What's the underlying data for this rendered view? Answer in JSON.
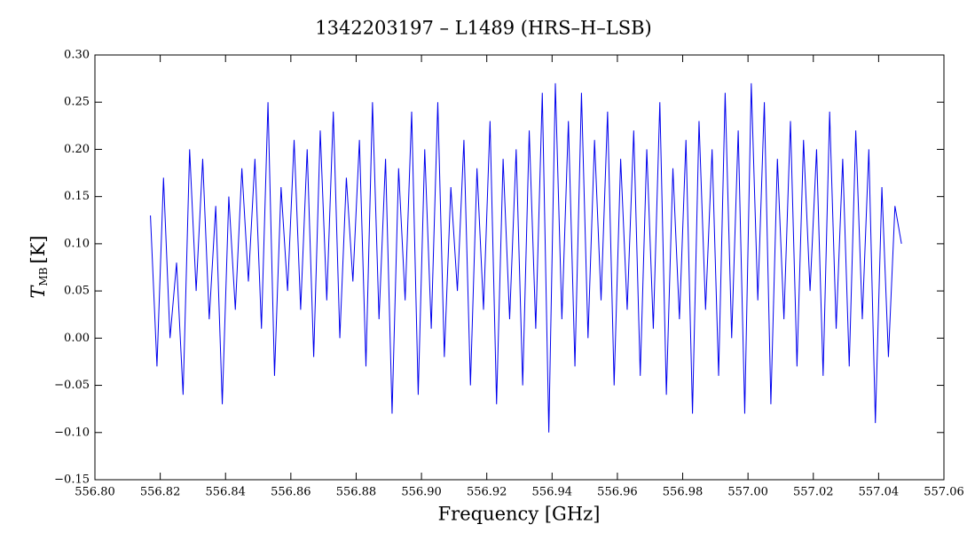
{
  "chart_data": {
    "type": "line",
    "title": "1342203197 – L1489 (HRS–H–LSB)",
    "xlabel": "Frequency [GHz]",
    "ylabel": {
      "symbol": "T",
      "subscript": "MB",
      "unit": "[K]"
    },
    "xlim": [
      556.8,
      557.06
    ],
    "xticks": [
      {
        "value": 556.8,
        "label": "556.80"
      },
      {
        "value": 556.82,
        "label": "556.82"
      },
      {
        "value": 556.84,
        "label": "556.84"
      },
      {
        "value": 556.86,
        "label": "556.86"
      },
      {
        "value": 556.88,
        "label": "556.88"
      },
      {
        "value": 556.9,
        "label": "556.90"
      },
      {
        "value": 556.92,
        "label": "556.92"
      },
      {
        "value": 556.94,
        "label": "556.94"
      },
      {
        "value": 556.96,
        "label": "556.96"
      },
      {
        "value": 556.98,
        "label": "556.98"
      },
      {
        "value": 557.0,
        "label": "557.00"
      },
      {
        "value": 557.02,
        "label": "557.02"
      },
      {
        "value": 557.04,
        "label": "557.04"
      },
      {
        "value": 557.06,
        "label": "557.06"
      }
    ],
    "ylim": [
      -0.15,
      0.3
    ],
    "yticks": [
      {
        "value": -0.15,
        "label": "−0.15"
      },
      {
        "value": -0.1,
        "label": "−0.10"
      },
      {
        "value": -0.05,
        "label": "−0.05"
      },
      {
        "value": 0.0,
        "label": "0.00"
      },
      0.05,
      {
        "value": 0.1,
        "label": "0.10"
      },
      0.15,
      {
        "value": 0.2,
        "label": "0.20"
      },
      0.25,
      {
        "value": 0.3,
        "label": "0.30"
      }
    ],
    "series": [
      {
        "color": "#0000ee",
        "x": [
          556.817,
          556.819,
          556.821,
          556.823,
          556.825,
          556.827,
          556.829,
          556.831,
          556.833,
          556.835,
          556.837,
          556.839,
          556.841,
          556.843,
          556.845,
          556.847,
          556.849,
          556.851,
          556.853,
          556.855,
          556.857,
          556.859,
          556.861,
          556.863,
          556.865,
          556.867,
          556.869,
          556.871,
          556.873,
          556.875,
          556.877,
          556.879,
          556.881,
          556.883,
          556.885,
          556.887,
          556.889,
          556.891,
          556.893,
          556.895,
          556.897,
          556.899,
          556.901,
          556.903,
          556.905,
          556.907,
          556.909,
          556.911,
          556.913,
          556.915,
          556.917,
          556.919,
          556.921,
          556.923,
          556.925,
          556.927,
          556.929,
          556.931,
          556.933,
          556.935,
          556.937,
          556.939,
          556.941,
          556.943,
          556.945,
          556.947,
          556.949,
          556.951,
          556.953,
          556.955,
          556.957,
          556.959,
          556.961,
          556.963,
          556.965,
          556.967,
          556.969,
          556.971,
          556.973,
          556.975,
          556.977,
          556.979,
          556.981,
          556.983,
          556.985,
          556.987,
          556.989,
          556.991,
          556.993,
          556.995,
          556.997,
          556.999,
          557.001,
          557.003,
          557.005,
          557.007,
          557.009,
          557.011,
          557.013,
          557.015,
          557.017,
          557.019,
          557.021,
          557.023,
          557.025,
          557.027,
          557.029,
          557.031,
          557.033,
          557.035,
          557.037,
          557.039,
          557.041,
          557.043,
          557.045,
          557.047
        ],
        "values": [
          0.13,
          -0.03,
          0.17,
          0.0,
          0.08,
          -0.06,
          0.2,
          0.05,
          0.19,
          0.02,
          0.14,
          -0.07,
          0.15,
          0.03,
          0.18,
          0.06,
          0.19,
          0.01,
          0.25,
          -0.04,
          0.16,
          0.05,
          0.21,
          0.03,
          0.2,
          -0.02,
          0.22,
          0.04,
          0.24,
          0.0,
          0.17,
          0.06,
          0.21,
          -0.03,
          0.25,
          0.02,
          0.19,
          -0.08,
          0.18,
          0.04,
          0.24,
          -0.06,
          0.2,
          0.01,
          0.25,
          -0.02,
          0.16,
          0.05,
          0.21,
          -0.05,
          0.18,
          0.03,
          0.23,
          -0.07,
          0.19,
          0.02,
          0.2,
          -0.05,
          0.22,
          0.01,
          0.26,
          -0.1,
          0.27,
          0.02,
          0.23,
          -0.03,
          0.26,
          0.0,
          0.21,
          0.04,
          0.24,
          -0.05,
          0.19,
          0.03,
          0.22,
          -0.04,
          0.2,
          0.01,
          0.25,
          -0.06,
          0.18,
          0.02,
          0.21,
          -0.08,
          0.23,
          0.03,
          0.2,
          -0.04,
          0.26,
          0.0,
          0.22,
          -0.08,
          0.27,
          0.04,
          0.25,
          -0.07,
          0.19,
          0.02,
          0.23,
          -0.03,
          0.21,
          0.05,
          0.2,
          -0.04,
          0.24,
          0.01,
          0.19,
          -0.03,
          0.22,
          0.02,
          0.2,
          -0.09,
          0.16,
          -0.02,
          0.14,
          0.1
        ]
      }
    ]
  }
}
